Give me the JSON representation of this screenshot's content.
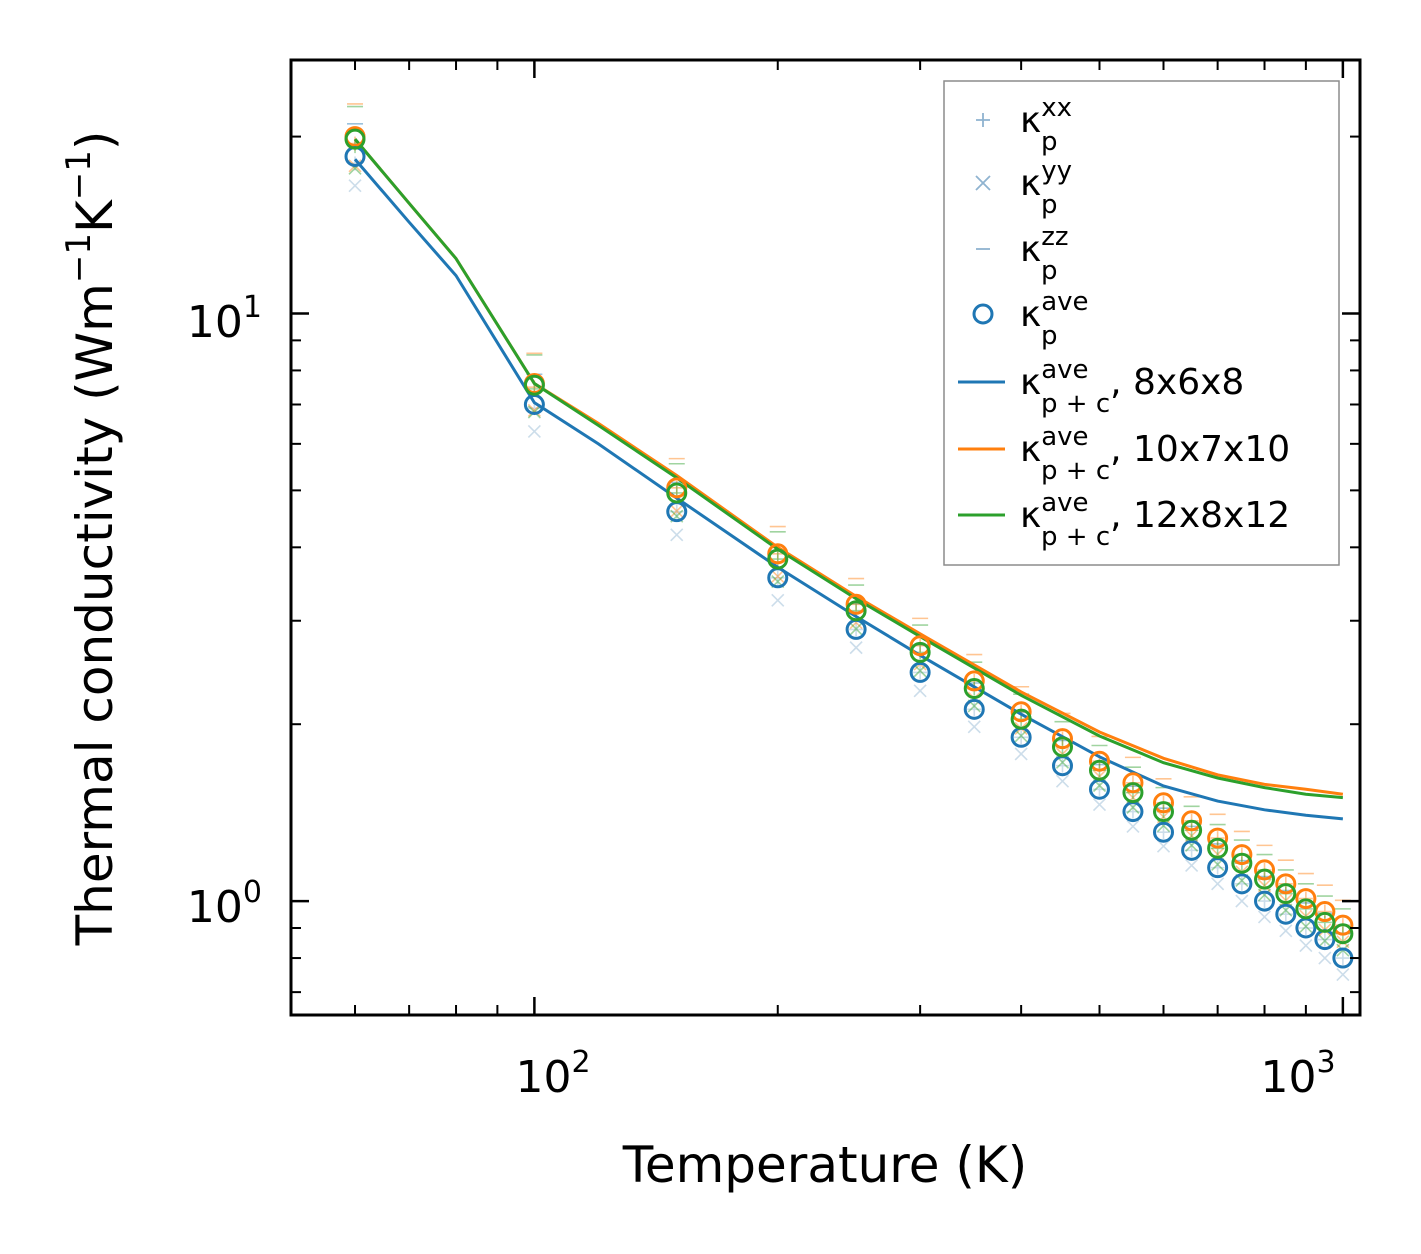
{
  "chart_data": {
    "type": "scatter",
    "title": "",
    "xlabel": "Temperature (K)",
    "ylabel_main": "Thermal conductivity (Wm",
    "ylabel_exp1": "−1",
    "ylabel_mid": "K",
    "ylabel_exp2": "−1",
    "ylabel_end": ")",
    "xscale": "log",
    "yscale": "log",
    "xlim": [
      50,
      1050
    ],
    "ylim": [
      0.64,
      27
    ],
    "grid": false,
    "legend_position": "top-right",
    "xticks": [
      {
        "base": "10",
        "exp": "2",
        "value": 100
      },
      {
        "base": "10",
        "exp": "3",
        "value": 1000
      }
    ],
    "yticks": [
      {
        "base": "10",
        "exp": "0",
        "value": 1
      },
      {
        "base": "10",
        "exp": "1",
        "value": 10
      }
    ],
    "x": [
      60,
      100,
      150,
      200,
      250,
      300,
      350,
      400,
      450,
      500,
      550,
      600,
      650,
      700,
      750,
      800,
      850,
      900,
      950,
      1000
    ],
    "colors": {
      "blue": "#1f77b4",
      "orange": "#ff7f0e",
      "green": "#2ca02c",
      "light": "#8fb3d0"
    },
    "series": [
      {
        "name": "κp ave 8x6x8",
        "values": [
          18.5,
          7.0,
          4.6,
          3.55,
          2.9,
          2.45,
          2.12,
          1.9,
          1.7,
          1.55,
          1.42,
          1.31,
          1.22,
          1.14,
          1.07,
          1.0,
          0.95,
          0.9,
          0.86,
          0.8
        ]
      },
      {
        "name": "κp ave 10x7x10",
        "values": [
          20.0,
          7.6,
          5.05,
          3.9,
          3.2,
          2.72,
          2.37,
          2.1,
          1.89,
          1.73,
          1.59,
          1.47,
          1.37,
          1.28,
          1.2,
          1.13,
          1.07,
          1.01,
          0.96,
          0.91
        ]
      },
      {
        "name": "κp ave 12x8x12",
        "values": [
          19.8,
          7.55,
          4.95,
          3.82,
          3.12,
          2.65,
          2.3,
          2.04,
          1.83,
          1.67,
          1.53,
          1.42,
          1.32,
          1.23,
          1.16,
          1.09,
          1.03,
          0.97,
          0.92,
          0.88
        ]
      },
      {
        "name": "κp+c ave 8x6x8",
        "x": [
          60,
          70,
          80,
          100,
          120,
          150,
          200,
          250,
          300,
          400,
          500,
          600,
          700,
          800,
          900,
          1000
        ],
        "values": [
          18.3,
          14.3,
          11.6,
          7.05,
          6.0,
          4.85,
          3.7,
          3.05,
          2.62,
          2.08,
          1.76,
          1.57,
          1.48,
          1.43,
          1.4,
          1.38
        ]
      },
      {
        "name": "κp+c ave 10x7x10",
        "x": [
          60,
          70,
          80,
          100,
          120,
          150,
          200,
          250,
          300,
          400,
          500,
          600,
          700,
          800,
          900,
          1000
        ],
        "values": [
          19.8,
          15.4,
          12.4,
          7.6,
          6.5,
          5.3,
          4.0,
          3.3,
          2.85,
          2.27,
          1.94,
          1.75,
          1.64,
          1.58,
          1.55,
          1.52
        ]
      },
      {
        "name": "κp+c ave 12x8x12",
        "x": [
          60,
          70,
          80,
          100,
          120,
          150,
          200,
          250,
          300,
          400,
          500,
          600,
          700,
          800,
          900,
          1000
        ],
        "values": [
          19.8,
          15.4,
          12.4,
          7.6,
          6.45,
          5.25,
          3.97,
          3.27,
          2.82,
          2.24,
          1.91,
          1.72,
          1.62,
          1.56,
          1.52,
          1.5
        ]
      }
    ],
    "components": [
      {
        "name": "κp xx 8x6x8",
        "values": [
          18.0,
          6.9,
          4.6,
          3.55,
          2.9,
          2.45,
          2.12,
          1.9,
          1.7,
          1.55,
          1.42,
          1.31,
          1.22,
          1.14,
          1.07,
          1.0,
          0.95,
          0.9,
          0.86,
          0.8
        ]
      },
      {
        "name": "κp yy 8x6x8",
        "values": [
          16.5,
          6.3,
          4.2,
          3.25,
          2.7,
          2.28,
          1.98,
          1.78,
          1.6,
          1.46,
          1.34,
          1.24,
          1.15,
          1.07,
          1.0,
          0.94,
          0.89,
          0.84,
          0.8,
          0.75
        ]
      },
      {
        "name": "κp zz 12x8x12",
        "values": [
          22.5,
          8.5,
          5.55,
          4.25,
          3.45,
          2.95,
          2.55,
          2.25,
          2.02,
          1.84,
          1.69,
          1.56,
          1.45,
          1.35,
          1.27,
          1.2,
          1.13,
          1.07,
          1.02,
          0.97
        ]
      }
    ],
    "legend": [
      {
        "sym": "κ",
        "sub": "p",
        "sup": "xx",
        "suffix": ""
      },
      {
        "sym": "κ",
        "sub": "p",
        "sup": "yy",
        "suffix": ""
      },
      {
        "sym": "κ",
        "sub": "p",
        "sup": "zz",
        "suffix": ""
      },
      {
        "sym": "κ",
        "sub": "p",
        "sup": "ave",
        "suffix": ""
      },
      {
        "sym": "κ",
        "sub": "p + c",
        "sup": "ave",
        "suffix": ", 8x6x8"
      },
      {
        "sym": "κ",
        "sub": "p + c",
        "sup": "ave",
        "suffix": ", 10x7x10"
      },
      {
        "sym": "κ",
        "sub": "p + c",
        "sup": "ave",
        "suffix": ", 12x8x12"
      }
    ]
  }
}
